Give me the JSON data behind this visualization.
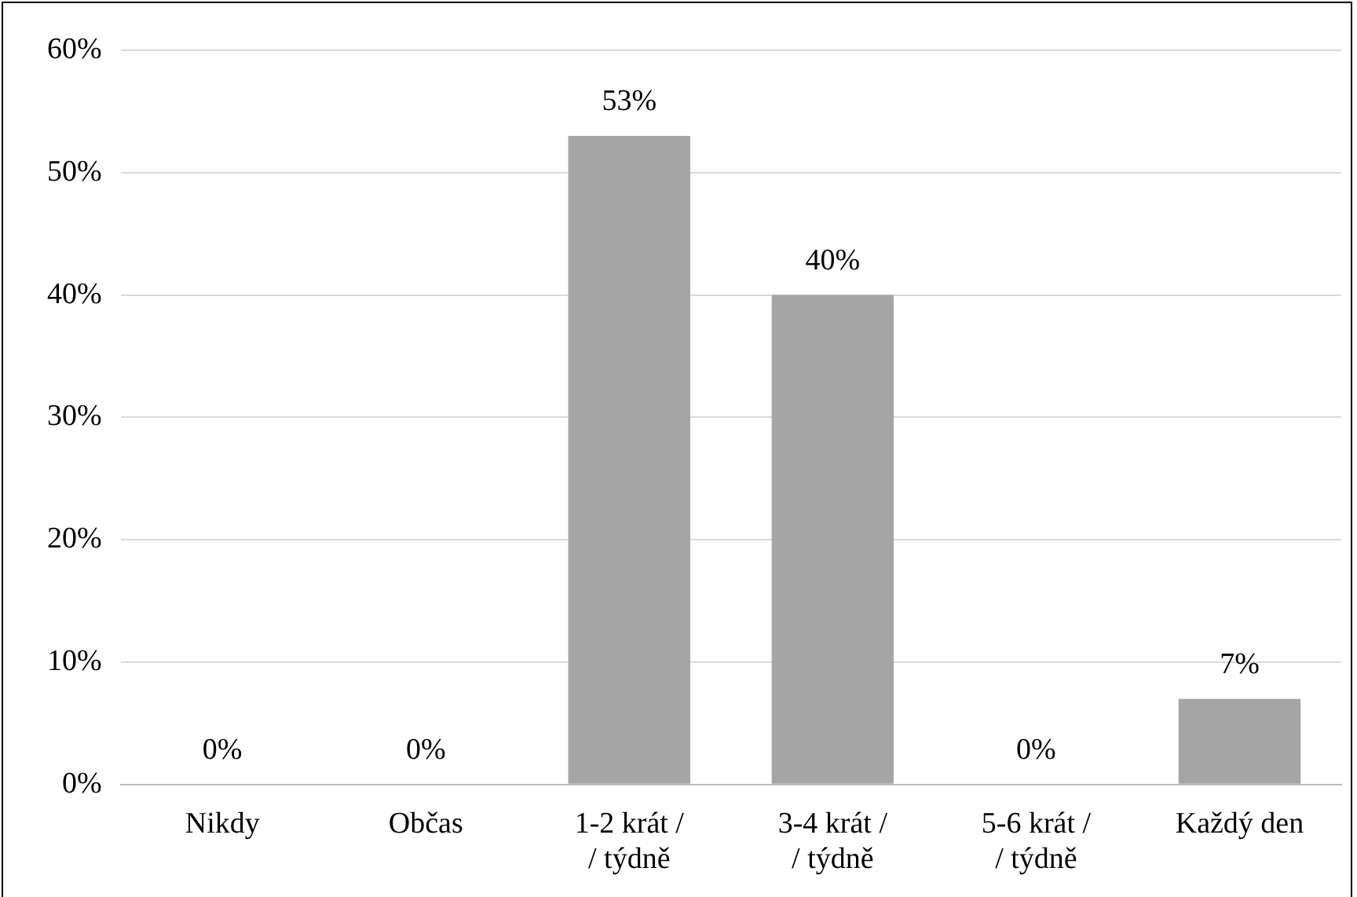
{
  "chart_data": {
    "type": "bar",
    "categories": [
      "Nikdy",
      "Občas",
      "1-2 krát /\n/ týdně",
      "3-4 krát /\n/ týdně",
      "5-6 krát /\n/ týdně",
      "Každý den"
    ],
    "values": [
      0,
      0,
      53,
      40,
      0,
      7
    ],
    "value_labels": [
      "0%",
      "0%",
      "53%",
      "40%",
      "0%",
      "7%"
    ],
    "color": "#a5a5a5",
    "ylim": [
      0,
      60
    ],
    "yticks": [
      {
        "value": 0,
        "label": "0%"
      },
      {
        "value": 10,
        "label": "10%"
      },
      {
        "value": 20,
        "label": "20%"
      },
      {
        "value": 30,
        "label": "30%"
      },
      {
        "value": 40,
        "label": "40%"
      },
      {
        "value": 50,
        "label": "50%"
      },
      {
        "value": 60,
        "label": "60%"
      }
    ],
    "grid": "y"
  }
}
